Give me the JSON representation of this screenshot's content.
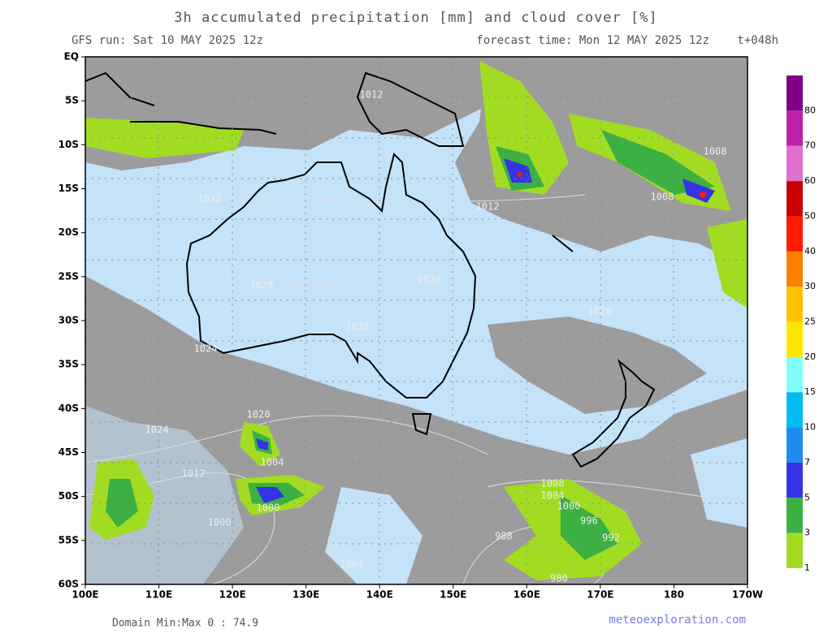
{
  "header": {
    "title": "3h accumulated precipitation [mm] and cloud cover [%]",
    "run": "GFS run: Sat 10 MAY 2025 12z",
    "forecast": "forecast time: Mon 12 MAY 2025 12z",
    "lead": "t+048h"
  },
  "map": {
    "lat_labels": [
      "EQ",
      "5S",
      "10S",
      "15S",
      "20S",
      "25S",
      "30S",
      "35S",
      "40S",
      "45S",
      "50S",
      "55S",
      "60S"
    ],
    "lon_labels": [
      "100E",
      "110E",
      "120E",
      "130E",
      "140E",
      "150E",
      "160E",
      "170E",
      "180",
      "170W"
    ],
    "isobar_labels": [
      "1012",
      "1012",
      "1012",
      "1008",
      "1008",
      "1020",
      "1020",
      "1020",
      "1020",
      "1024",
      "1024",
      "1020",
      "1004",
      "1000",
      "1008",
      "1004",
      "1000",
      "996",
      "992",
      "988",
      "1000",
      "1004",
      "980",
      "1012"
    ]
  },
  "colorbar": {
    "levels": [
      {
        "label": "1",
        "color": "#a2dc22"
      },
      {
        "label": "3",
        "color": "#3cb043"
      },
      {
        "label": "5",
        "color": "#3434e4"
      },
      {
        "label": "7",
        "color": "#1e8cf0"
      },
      {
        "label": "10",
        "color": "#00bcf0"
      },
      {
        "label": "15",
        "color": "#80fcfc"
      },
      {
        "label": "20",
        "color": "#ffe600"
      },
      {
        "label": "25",
        "color": "#ffc400"
      },
      {
        "label": "30",
        "color": "#ff8000"
      },
      {
        "label": "40",
        "color": "#ff1a00"
      },
      {
        "label": "50",
        "color": "#c80000"
      },
      {
        "label": "60",
        "color": "#e070d0"
      },
      {
        "label": "70",
        "color": "#c020a8"
      },
      {
        "label": "80",
        "color": "#800088"
      }
    ]
  },
  "footer": {
    "domain": "Domain Min:Max 0 : 74.9",
    "site": "meteoexploration.com"
  }
}
